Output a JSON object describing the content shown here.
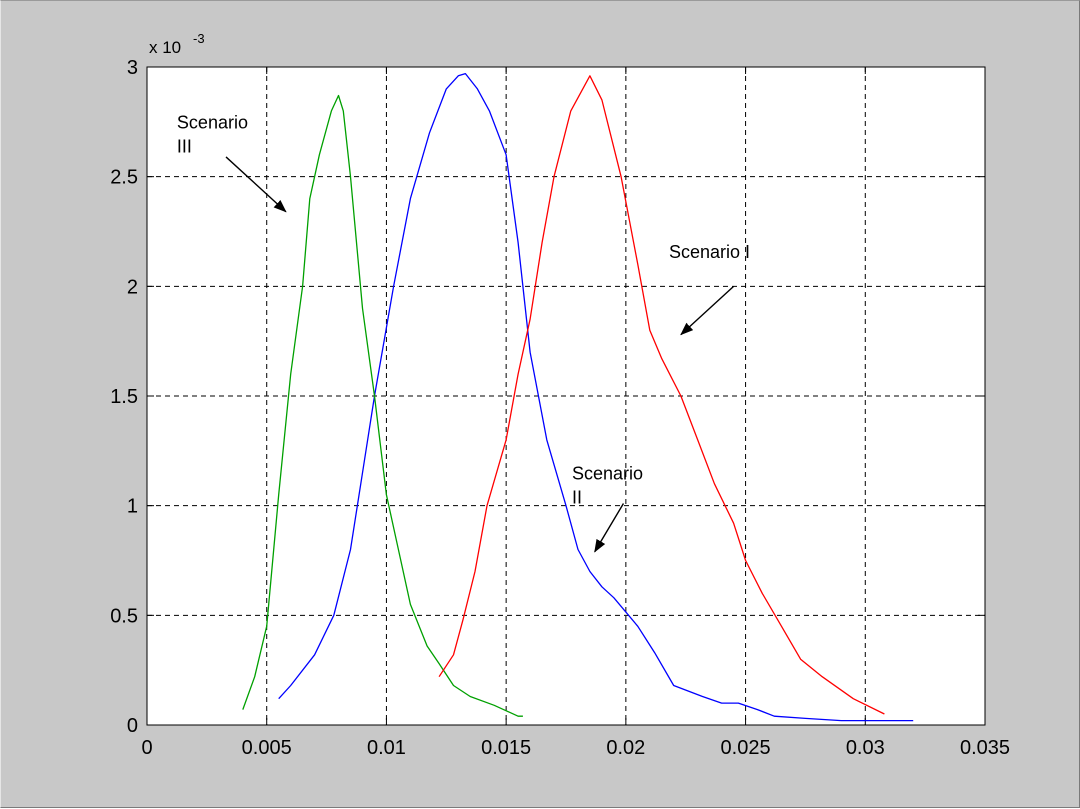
{
  "chart_data": {
    "type": "line",
    "title": "",
    "xlabel": "",
    "ylabel": "",
    "xlim": [
      0,
      0.035
    ],
    "ylim": [
      0,
      0.003
    ],
    "grid": true,
    "x_ticks": [
      0,
      0.005,
      0.01,
      0.015,
      0.02,
      0.025,
      0.03,
      0.035
    ],
    "x_tick_labels": [
      "0",
      "0.005",
      "0.01",
      "0.015",
      "0.02",
      "0.025",
      "0.03",
      "0.035"
    ],
    "y_ticks": [
      0,
      0.0005,
      0.001,
      0.0015,
      0.002,
      0.0025,
      0.003
    ],
    "y_tick_labels": [
      "0",
      "0.5",
      "1",
      "1.5",
      "2",
      "2.5",
      "3"
    ],
    "y_exponent_label": "x 10",
    "y_exponent_power": "-3",
    "series": [
      {
        "color": "#0000ff",
        "x": [
          0.0055,
          0.006,
          0.007,
          0.0078,
          0.0085,
          0.009,
          0.0095,
          0.0103,
          0.011,
          0.0118,
          0.0125,
          0.013,
          0.0133,
          0.0138,
          0.0143,
          0.015,
          0.0155,
          0.016,
          0.0167,
          0.0175,
          0.018,
          0.0185,
          0.019,
          0.0195,
          0.0205,
          0.0212,
          0.022,
          0.0232,
          0.024,
          0.0247,
          0.0255,
          0.0262,
          0.0275,
          0.029,
          0.031,
          0.032
        ],
        "y": [
          0.00012,
          0.00018,
          0.00032,
          0.0005,
          0.0008,
          0.00115,
          0.0015,
          0.002,
          0.0024,
          0.0027,
          0.0029,
          0.00296,
          0.00297,
          0.0029,
          0.0028,
          0.0026,
          0.0022,
          0.0017,
          0.0013,
          0.001,
          0.0008,
          0.0007,
          0.00063,
          0.00058,
          0.00045,
          0.00033,
          0.00018,
          0.00013,
          0.0001,
          0.0001,
          7e-05,
          4e-05,
          3e-05,
          2e-05,
          2e-05,
          2e-05
        ]
      },
      {
        "color": "#00a000",
        "x": [
          0.004,
          0.0045,
          0.005,
          0.0055,
          0.006,
          0.0065,
          0.0068,
          0.0072,
          0.0077,
          0.008,
          0.0082,
          0.0085,
          0.009,
          0.0095,
          0.01,
          0.0105,
          0.011,
          0.0117,
          0.0122,
          0.0128,
          0.0135,
          0.0145,
          0.0155,
          0.0157
        ],
        "y": [
          7e-05,
          0.00022,
          0.00045,
          0.00105,
          0.0016,
          0.002,
          0.0024,
          0.0026,
          0.0028,
          0.00287,
          0.0028,
          0.0025,
          0.0019,
          0.0015,
          0.00105,
          0.0008,
          0.00055,
          0.00036,
          0.00028,
          0.00018,
          0.00013,
          9e-05,
          4e-05,
          4e-05
        ]
      },
      {
        "color": "#ff0000",
        "x": [
          0.0122,
          0.0128,
          0.0132,
          0.0137,
          0.0142,
          0.015,
          0.0155,
          0.016,
          0.0165,
          0.017,
          0.0177,
          0.0185,
          0.019,
          0.0198,
          0.0205,
          0.021,
          0.0215,
          0.0223,
          0.023,
          0.0237,
          0.0245,
          0.025,
          0.0257,
          0.0265,
          0.0273,
          0.0282,
          0.0295,
          0.0308
        ],
        "y": [
          0.00022,
          0.00032,
          0.00048,
          0.0007,
          0.001,
          0.0013,
          0.0016,
          0.00185,
          0.0022,
          0.0025,
          0.0028,
          0.00296,
          0.00285,
          0.0025,
          0.0021,
          0.0018,
          0.00167,
          0.0015,
          0.0013,
          0.0011,
          0.00092,
          0.00075,
          0.0006,
          0.00045,
          0.0003,
          0.00022,
          0.00012,
          5e-05
        ]
      }
    ],
    "annotations": [
      {
        "lines": [
          "Scenario",
          "III"
        ],
        "text_x": 0.00125,
        "text_y": 0.00272,
        "arrow_from": [
          0.0033,
          0.00259
        ],
        "arrow_to": [
          0.0058,
          0.00234
        ]
      },
      {
        "lines": [
          "Scenario I"
        ],
        "text_x": 0.0218,
        "text_y": 0.00213,
        "arrow_from": [
          0.0245,
          0.002
        ],
        "arrow_to": [
          0.0223,
          0.00178
        ]
      },
      {
        "lines": [
          "Scenario",
          "II"
        ],
        "text_x": 0.01775,
        "text_y": 0.00112,
        "arrow_from": [
          0.0199,
          0.00101
        ],
        "arrow_to": [
          0.0187,
          0.00079
        ]
      }
    ]
  }
}
